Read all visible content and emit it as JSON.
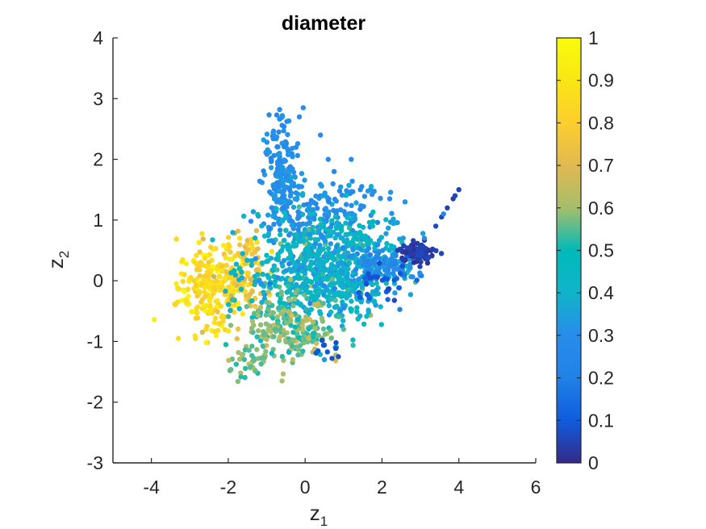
{
  "chart_data": {
    "type": "scatter",
    "title": "diameter",
    "xlabel": {
      "base": "z",
      "sub": "1"
    },
    "ylabel": {
      "base": "z",
      "sub": "2"
    },
    "xlim": [
      -5,
      6
    ],
    "ylim": [
      -3,
      4
    ],
    "xticks": [
      "-4",
      "-2",
      "0",
      "2",
      "4",
      "6"
    ],
    "yticks": [
      "-3",
      "-2",
      "-1",
      "0",
      "1",
      "2",
      "3",
      "4"
    ],
    "colorbar": {
      "label": "",
      "range": [
        0,
        1
      ],
      "ticks": [
        "0",
        "0.1",
        "0.2",
        "0.3",
        "0.4",
        "0.5",
        "0.6",
        "0.7",
        "0.8",
        "0.9",
        "1"
      ],
      "colormap": "parula"
    },
    "grid": false,
    "clusters": [
      {
        "cx": -2.4,
        "cy": -0.1,
        "sx": 0.45,
        "sy": 0.35,
        "n": 260,
        "value": 0.86,
        "spread": 0.06
      },
      {
        "cx": -1.6,
        "cy": 0.25,
        "sx": 0.3,
        "sy": 0.3,
        "n": 90,
        "value": 0.78,
        "spread": 0.06
      },
      {
        "cx": -0.6,
        "cy": 1.6,
        "sx": 0.25,
        "sy": 0.45,
        "n": 170,
        "value": 0.3,
        "spread": 0.03
      },
      {
        "cx": -0.7,
        "cy": 2.3,
        "sx": 0.15,
        "sy": 0.3,
        "n": 30,
        "value": 0.3,
        "spread": 0.02
      },
      {
        "cx": 0.3,
        "cy": 1.0,
        "sx": 0.55,
        "sy": 0.35,
        "n": 140,
        "value": 0.3,
        "spread": 0.03
      },
      {
        "cx": 1.5,
        "cy": 1.1,
        "sx": 0.6,
        "sy": 0.3,
        "n": 45,
        "value": 0.3,
        "spread": 0.03
      },
      {
        "cx": 0.3,
        "cy": 0.1,
        "sx": 0.9,
        "sy": 0.45,
        "n": 620,
        "value": 0.42,
        "spread": 0.07
      },
      {
        "cx": 1.5,
        "cy": 0.3,
        "sx": 0.6,
        "sy": 0.35,
        "n": 170,
        "value": 0.4,
        "spread": 0.07
      },
      {
        "cx": -0.4,
        "cy": -0.8,
        "sx": 0.5,
        "sy": 0.25,
        "n": 200,
        "value": 0.58,
        "spread": 0.05
      },
      {
        "cx": -1.5,
        "cy": -1.3,
        "sx": 0.3,
        "sy": 0.15,
        "n": 40,
        "value": 0.56,
        "spread": 0.04
      },
      {
        "cx": 2.1,
        "cy": 0.25,
        "sx": 0.4,
        "sy": 0.12,
        "n": 90,
        "value": 0.27,
        "spread": 0.04
      },
      {
        "cx": 2.9,
        "cy": 0.45,
        "sx": 0.25,
        "sy": 0.08,
        "n": 90,
        "value": 0.04,
        "spread": 0.02
      },
      {
        "cx": 2.0,
        "cy": -0.05,
        "sx": 0.4,
        "sy": 0.15,
        "n": 30,
        "value": 0.09,
        "spread": 0.03
      },
      {
        "cx": 0.6,
        "cy": -1.15,
        "sx": 0.15,
        "sy": 0.08,
        "n": 10,
        "value": 0.07,
        "spread": 0.02
      }
    ],
    "points": [
      {
        "x": 3.4,
        "y": 0.9,
        "value": 0.07
      },
      {
        "x": 3.55,
        "y": 1.05,
        "value": 0.06
      },
      {
        "x": 3.7,
        "y": 1.2,
        "value": 0.05
      },
      {
        "x": 3.85,
        "y": 1.35,
        "value": 0.04
      },
      {
        "x": 4.0,
        "y": 1.5,
        "value": 0.05
      },
      {
        "x": 3.9,
        "y": 1.4,
        "value": 0.06
      },
      {
        "x": 3.6,
        "y": 1.1,
        "value": 0.25
      },
      {
        "x": 3.1,
        "y": 0.7,
        "value": 0.28
      },
      {
        "x": 2.6,
        "y": 1.3,
        "value": 0.32
      },
      {
        "x": 2.2,
        "y": 1.35,
        "value": 0.3
      },
      {
        "x": 1.7,
        "y": 1.5,
        "value": 0.33
      },
      {
        "x": 1.2,
        "y": 2.0,
        "value": 0.3
      },
      {
        "x": 0.6,
        "y": 2.0,
        "value": 0.3
      },
      {
        "x": 0.4,
        "y": 2.4,
        "value": 0.3
      },
      {
        "x": -0.05,
        "y": 2.85,
        "value": 0.3
      },
      {
        "x": -0.15,
        "y": 2.7,
        "value": 0.3
      },
      {
        "x": -0.6,
        "y": -1.65,
        "value": 0.6
      },
      {
        "x": -3.3,
        "y": -0.95,
        "value": 0.85
      },
      {
        "x": -2.85,
        "y": -0.95,
        "value": 0.85
      },
      {
        "x": -2.2,
        "y": -0.7,
        "value": 0.82
      },
      {
        "x": 0.5,
        "y": -1.3,
        "value": 0.33
      },
      {
        "x": 1.2,
        "y": -0.5,
        "value": 0.5
      },
      {
        "x": 1.0,
        "y": -0.8,
        "value": 0.55
      }
    ]
  }
}
